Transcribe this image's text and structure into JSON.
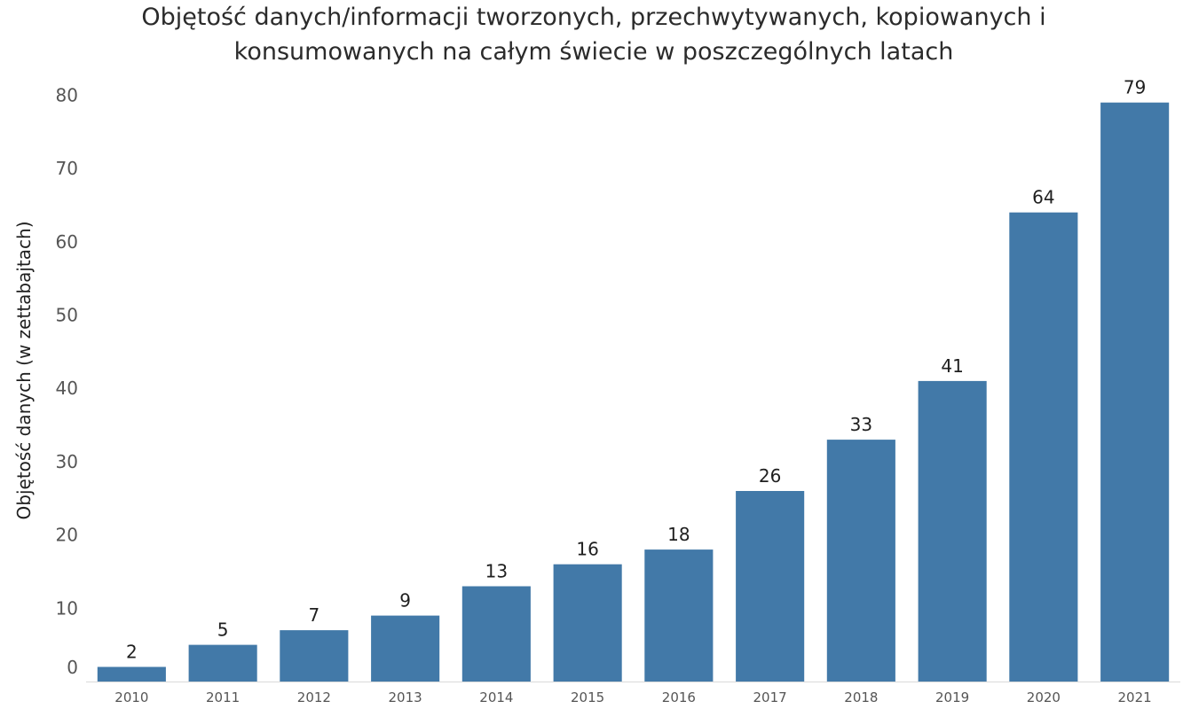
{
  "colors": {
    "bar": "#4279a8",
    "axis": "#d9d9d9",
    "text": "#1f1f1f"
  },
  "chart_data": {
    "type": "bar",
    "title_lines": [
      "Objętość danych/informacji tworzonych, przechwytywanych, kopiowanych i",
      "konsumowanych na całym świecie w poszczególnych latach"
    ],
    "xlabel": "",
    "ylabel": "Objętość danych (w zettabajtach)",
    "ylim": [
      0,
      80
    ],
    "yticks": [
      0,
      10,
      20,
      30,
      40,
      50,
      60,
      70,
      80
    ],
    "categories": [
      "2010",
      "2011",
      "2012",
      "2013",
      "2014",
      "2015",
      "2016",
      "2017",
      "2018",
      "2019",
      "2020",
      "2021"
    ],
    "values": [
      2,
      5,
      7,
      9,
      13,
      16,
      18,
      26,
      33,
      41,
      64,
      79
    ],
    "data_labels": [
      "2",
      "5",
      "7",
      "9",
      "13",
      "16",
      "18",
      "26",
      "33",
      "41",
      "64",
      "79"
    ],
    "grid": false,
    "legend": "none"
  }
}
